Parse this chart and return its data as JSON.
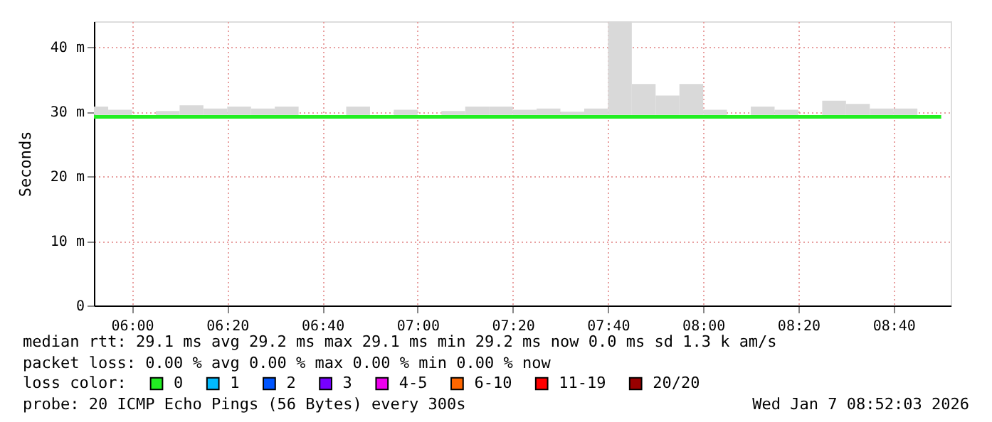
{
  "chart_data": {
    "type": "bar",
    "ylabel": "Seconds",
    "x": [
      "2026-01-07T05:52:30",
      "2026-01-07T05:57:30",
      "2026-01-07T06:02:30",
      "2026-01-07T06:07:30",
      "2026-01-07T06:12:30",
      "2026-01-07T06:17:30",
      "2026-01-07T06:22:30",
      "2026-01-07T06:27:30",
      "2026-01-07T06:32:30",
      "2026-01-07T06:37:30",
      "2026-01-07T06:42:30",
      "2026-01-07T06:47:30",
      "2026-01-07T06:52:30",
      "2026-01-07T06:57:30",
      "2026-01-07T07:02:30",
      "2026-01-07T07:07:30",
      "2026-01-07T07:12:30",
      "2026-01-07T07:17:30",
      "2026-01-07T07:22:30",
      "2026-01-07T07:27:30",
      "2026-01-07T07:32:30",
      "2026-01-07T07:37:30",
      "2026-01-07T07:42:30",
      "2026-01-07T07:47:30",
      "2026-01-07T07:52:30",
      "2026-01-07T07:57:30",
      "2026-01-07T08:02:30",
      "2026-01-07T08:07:30",
      "2026-01-07T08:12:30",
      "2026-01-07T08:17:30",
      "2026-01-07T08:22:30",
      "2026-01-07T08:27:30",
      "2026-01-07T08:32:30",
      "2026-01-07T08:37:30",
      "2026-01-07T08:42:30"
    ],
    "series": [
      {
        "color": "#d9d9d9",
        "base": [
          29.5,
          29.5,
          null,
          29.5,
          29.5,
          29.5,
          29.5,
          29.5,
          29.5,
          null,
          null,
          29.5,
          null,
          29.5,
          null,
          29.5,
          29.5,
          29.5,
          29.5,
          29.5,
          29.5,
          29.5,
          29.5,
          29.5,
          29.5,
          29.5,
          29.5,
          null,
          29.5,
          29.5,
          null,
          29.5,
          29.5,
          29.5,
          29.5
        ],
        "values": [
          1.3,
          0.8,
          null,
          0.6,
          1.5,
          1.0,
          1.3,
          1.0,
          1.3,
          null,
          null,
          1.3,
          null,
          0.8,
          null,
          0.6,
          1.3,
          1.3,
          0.8,
          1.0,
          0.5,
          1.0,
          14.5,
          4.8,
          3.0,
          4.8,
          0.8,
          null,
          1.3,
          0.8,
          null,
          2.2,
          1.7,
          1.0,
          1.0
        ]
      },
      {
        "type": "line",
        "color": "#22ee22",
        "x": [
          "2026-01-07T05:52",
          "2026-01-07T08:50"
        ],
        "values": [
          29.2,
          29.2
        ]
      }
    ],
    "xlim": [
      "2026-01-07T05:52",
      "2026-01-07T08:52"
    ],
    "xticks": [
      {
        "value": "2026-01-07T06:00",
        "label": "06:00"
      },
      {
        "value": "2026-01-07T06:20",
        "label": "06:20"
      },
      {
        "value": "2026-01-07T06:40",
        "label": "06:40"
      },
      {
        "value": "2026-01-07T07:00",
        "label": "07:00"
      },
      {
        "value": "2026-01-07T07:20",
        "label": "07:20"
      },
      {
        "value": "2026-01-07T07:40",
        "label": "07:40"
      },
      {
        "value": "2026-01-07T08:00",
        "label": "08:00"
      },
      {
        "value": "2026-01-07T08:20",
        "label": "08:20"
      },
      {
        "value": "2026-01-07T08:40",
        "label": "08:40"
      }
    ],
    "ylim": [
      0,
      44
    ],
    "yticks": [
      0,
      {
        "value": 10,
        "label": "10 m"
      },
      {
        "value": 20,
        "label": "20 m"
      },
      {
        "value": 30,
        "label": "30 m"
      },
      {
        "value": 40,
        "label": "40 m"
      }
    ],
    "grid": true,
    "annotations": [
      "median rtt:  29.1 ms avg  29.2 ms max  29.1 ms min  29.2 ms now  0.0 ms sd  1.3 k am/s",
      "packet loss: 0.00 % avg  0.00 % max  0.00 % min  0.00 % now",
      "loss color:",
      "0",
      "1",
      "2",
      "3",
      "4-5",
      "6-10",
      "11-19",
      "20/20",
      "probe:       20 ICMP Echo Pings (56 Bytes) every 300s",
      "Wed Jan  7 08:52:03 2026"
    ]
  }
}
